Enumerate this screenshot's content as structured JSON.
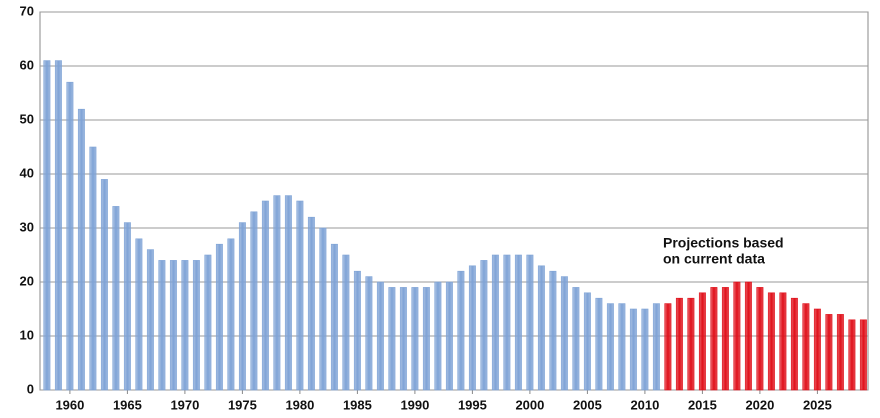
{
  "chart_data": {
    "type": "bar",
    "annotation": [
      "Projections based",
      "on current data"
    ],
    "annotation_color": "#e00000",
    "xlim": [
      1957.4,
      2029.4
    ],
    "xticks": [
      1960,
      1965,
      1970,
      1975,
      1980,
      1985,
      1990,
      1995,
      2000,
      2005,
      2010,
      2015,
      2020,
      2025
    ],
    "ylim": [
      0,
      70
    ],
    "yticks": [
      0,
      10,
      20,
      30,
      40,
      50,
      60,
      70
    ],
    "grid": true,
    "series": [
      {
        "color": "#7fa3d6",
        "x": [
          1958,
          1959,
          1960,
          1961,
          1962,
          1963,
          1964,
          1965,
          1966,
          1967,
          1968,
          1969,
          1970,
          1971,
          1972,
          1973,
          1974,
          1975,
          1976,
          1977,
          1978,
          1979,
          1980,
          1981,
          1982,
          1983,
          1984,
          1985,
          1986,
          1987,
          1988,
          1989,
          1990,
          1991,
          1992,
          1993,
          1994,
          1995,
          1996,
          1997,
          1998,
          1999,
          2000,
          2001,
          2002,
          2003,
          2004,
          2005,
          2006,
          2007,
          2008,
          2009,
          2010,
          2011
        ],
        "values": [
          61,
          61,
          57,
          52,
          45,
          39,
          34,
          31,
          28,
          26,
          24,
          24,
          24,
          24,
          25,
          27,
          28,
          31,
          33,
          35,
          36,
          36,
          35,
          32,
          30,
          27,
          25,
          22,
          21,
          20,
          19,
          19,
          19,
          19,
          20,
          20,
          22,
          23,
          24,
          25,
          25,
          25,
          25,
          23,
          22,
          21,
          19,
          18,
          17,
          16,
          16,
          15,
          15,
          16
        ]
      },
      {
        "color": "#e0101a",
        "x": [
          2012,
          2013,
          2014,
          2015,
          2016,
          2017,
          2018,
          2019,
          2020,
          2021,
          2022,
          2023,
          2024,
          2025,
          2026,
          2027,
          2028,
          2029
        ],
        "values": [
          16,
          17,
          17,
          18,
          19,
          19,
          20,
          20,
          19,
          18,
          18,
          17,
          16,
          15,
          14,
          14,
          13,
          13
        ]
      }
    ]
  }
}
